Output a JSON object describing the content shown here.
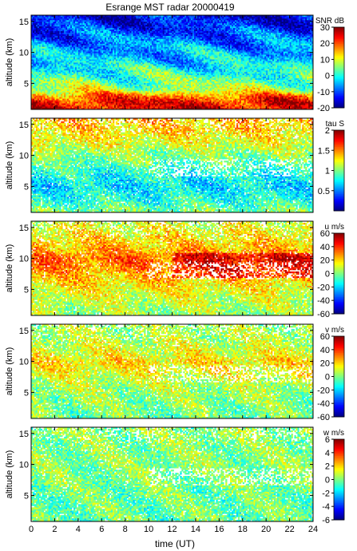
{
  "chart_data": {
    "type": "heatmap",
    "title": "Esrange MST radar 20000419",
    "xlabel": "time (UT)",
    "x_ticks": [
      0,
      2,
      4,
      6,
      8,
      10,
      12,
      14,
      16,
      18,
      20,
      22,
      24
    ],
    "xlim": [
      0,
      24
    ],
    "colormap": "jet",
    "panels": [
      {
        "id": "snr",
        "ylabel": "altitude (km)",
        "ylim": [
          0.8,
          16
        ],
        "y_ticks": [
          5,
          10,
          15
        ],
        "colorbar_label": "SNR dB",
        "clim": [
          -20,
          30
        ],
        "colorbar_ticks": [
          30,
          20,
          10,
          0,
          -10,
          -20
        ],
        "has_gaps": false,
        "seed": 11,
        "profile": [
          {
            "alt": 1,
            "value": 25
          },
          {
            "alt": 2,
            "value": 24
          },
          {
            "alt": 3,
            "value": 18
          },
          {
            "alt": 4,
            "value": 8
          },
          {
            "alt": 5,
            "value": 5
          },
          {
            "alt": 7,
            "value": 0
          },
          {
            "alt": 9,
            "value": -4
          },
          {
            "alt": 11,
            "value": -6
          },
          {
            "alt": 12,
            "value": -8
          },
          {
            "alt": 14,
            "value": -12
          },
          {
            "alt": 16,
            "value": -14
          }
        ]
      },
      {
        "id": "tau",
        "ylabel": "altitude (km)",
        "ylim": [
          0.8,
          16
        ],
        "y_ticks": [
          5,
          10,
          15
        ],
        "colorbar_label": "tau S",
        "clim": [
          0,
          2
        ],
        "colorbar_ticks": [
          2,
          1.5,
          1,
          0.5
        ],
        "has_gaps": true,
        "seed": 23,
        "profile": [
          {
            "alt": 1,
            "value": 1.0
          },
          {
            "alt": 3,
            "value": 0.8
          },
          {
            "alt": 5,
            "value": 0.7
          },
          {
            "alt": 7,
            "value": 0.8
          },
          {
            "alt": 9,
            "value": 0.95
          },
          {
            "alt": 10.5,
            "value": 1.05
          },
          {
            "alt": 12,
            "value": 1.2
          },
          {
            "alt": 14,
            "value": 1.3
          },
          {
            "alt": 16,
            "value": 1.4
          }
        ]
      },
      {
        "id": "u",
        "ylabel": "altitude (km)",
        "ylim": [
          0.8,
          16
        ],
        "y_ticks": [
          5,
          10,
          15
        ],
        "colorbar_label": "u m/s",
        "clim": [
          -60,
          60
        ],
        "colorbar_ticks": [
          60,
          40,
          20,
          0,
          -20,
          -40,
          -60
        ],
        "has_gaps": true,
        "seed": 37,
        "profile": [
          {
            "alt": 1,
            "value": 3
          },
          {
            "alt": 3,
            "value": 8
          },
          {
            "alt": 5,
            "value": 14
          },
          {
            "alt": 7,
            "value": 22
          },
          {
            "alt": 9,
            "value": 30
          },
          {
            "alt": 10,
            "value": 32
          },
          {
            "alt": 12,
            "value": 22
          },
          {
            "alt": 14,
            "value": 15
          },
          {
            "alt": 16,
            "value": 10
          }
        ]
      },
      {
        "id": "v",
        "ylabel": "altitude (km)",
        "ylim": [
          0.8,
          16
        ],
        "y_ticks": [
          5,
          10,
          15
        ],
        "colorbar_label": "v m/s",
        "clim": [
          -60,
          60
        ],
        "colorbar_ticks": [
          60,
          40,
          20,
          0,
          -20,
          -40,
          -60
        ],
        "has_gaps": true,
        "seed": 41,
        "profile": [
          {
            "alt": 1,
            "value": -2
          },
          {
            "alt": 4,
            "value": 2
          },
          {
            "alt": 7,
            "value": 8
          },
          {
            "alt": 9,
            "value": 16
          },
          {
            "alt": 10,
            "value": 18
          },
          {
            "alt": 12,
            "value": 10
          },
          {
            "alt": 14,
            "value": 6
          },
          {
            "alt": 16,
            "value": 4
          }
        ]
      },
      {
        "id": "w",
        "ylabel": "altitude (km)",
        "ylim": [
          0.8,
          16
        ],
        "y_ticks": [
          5,
          10,
          15
        ],
        "colorbar_label": "w m/s",
        "clim": [
          -6,
          6
        ],
        "colorbar_ticks": [
          6,
          4,
          2,
          0,
          -2,
          -4,
          -6
        ],
        "has_gaps": true,
        "seed": 53,
        "profile": [
          {
            "alt": 1,
            "value": -0.3
          },
          {
            "alt": 5,
            "value": -0.2
          },
          {
            "alt": 10,
            "value": 0.1
          },
          {
            "alt": 16,
            "value": 0.2
          }
        ]
      }
    ]
  }
}
